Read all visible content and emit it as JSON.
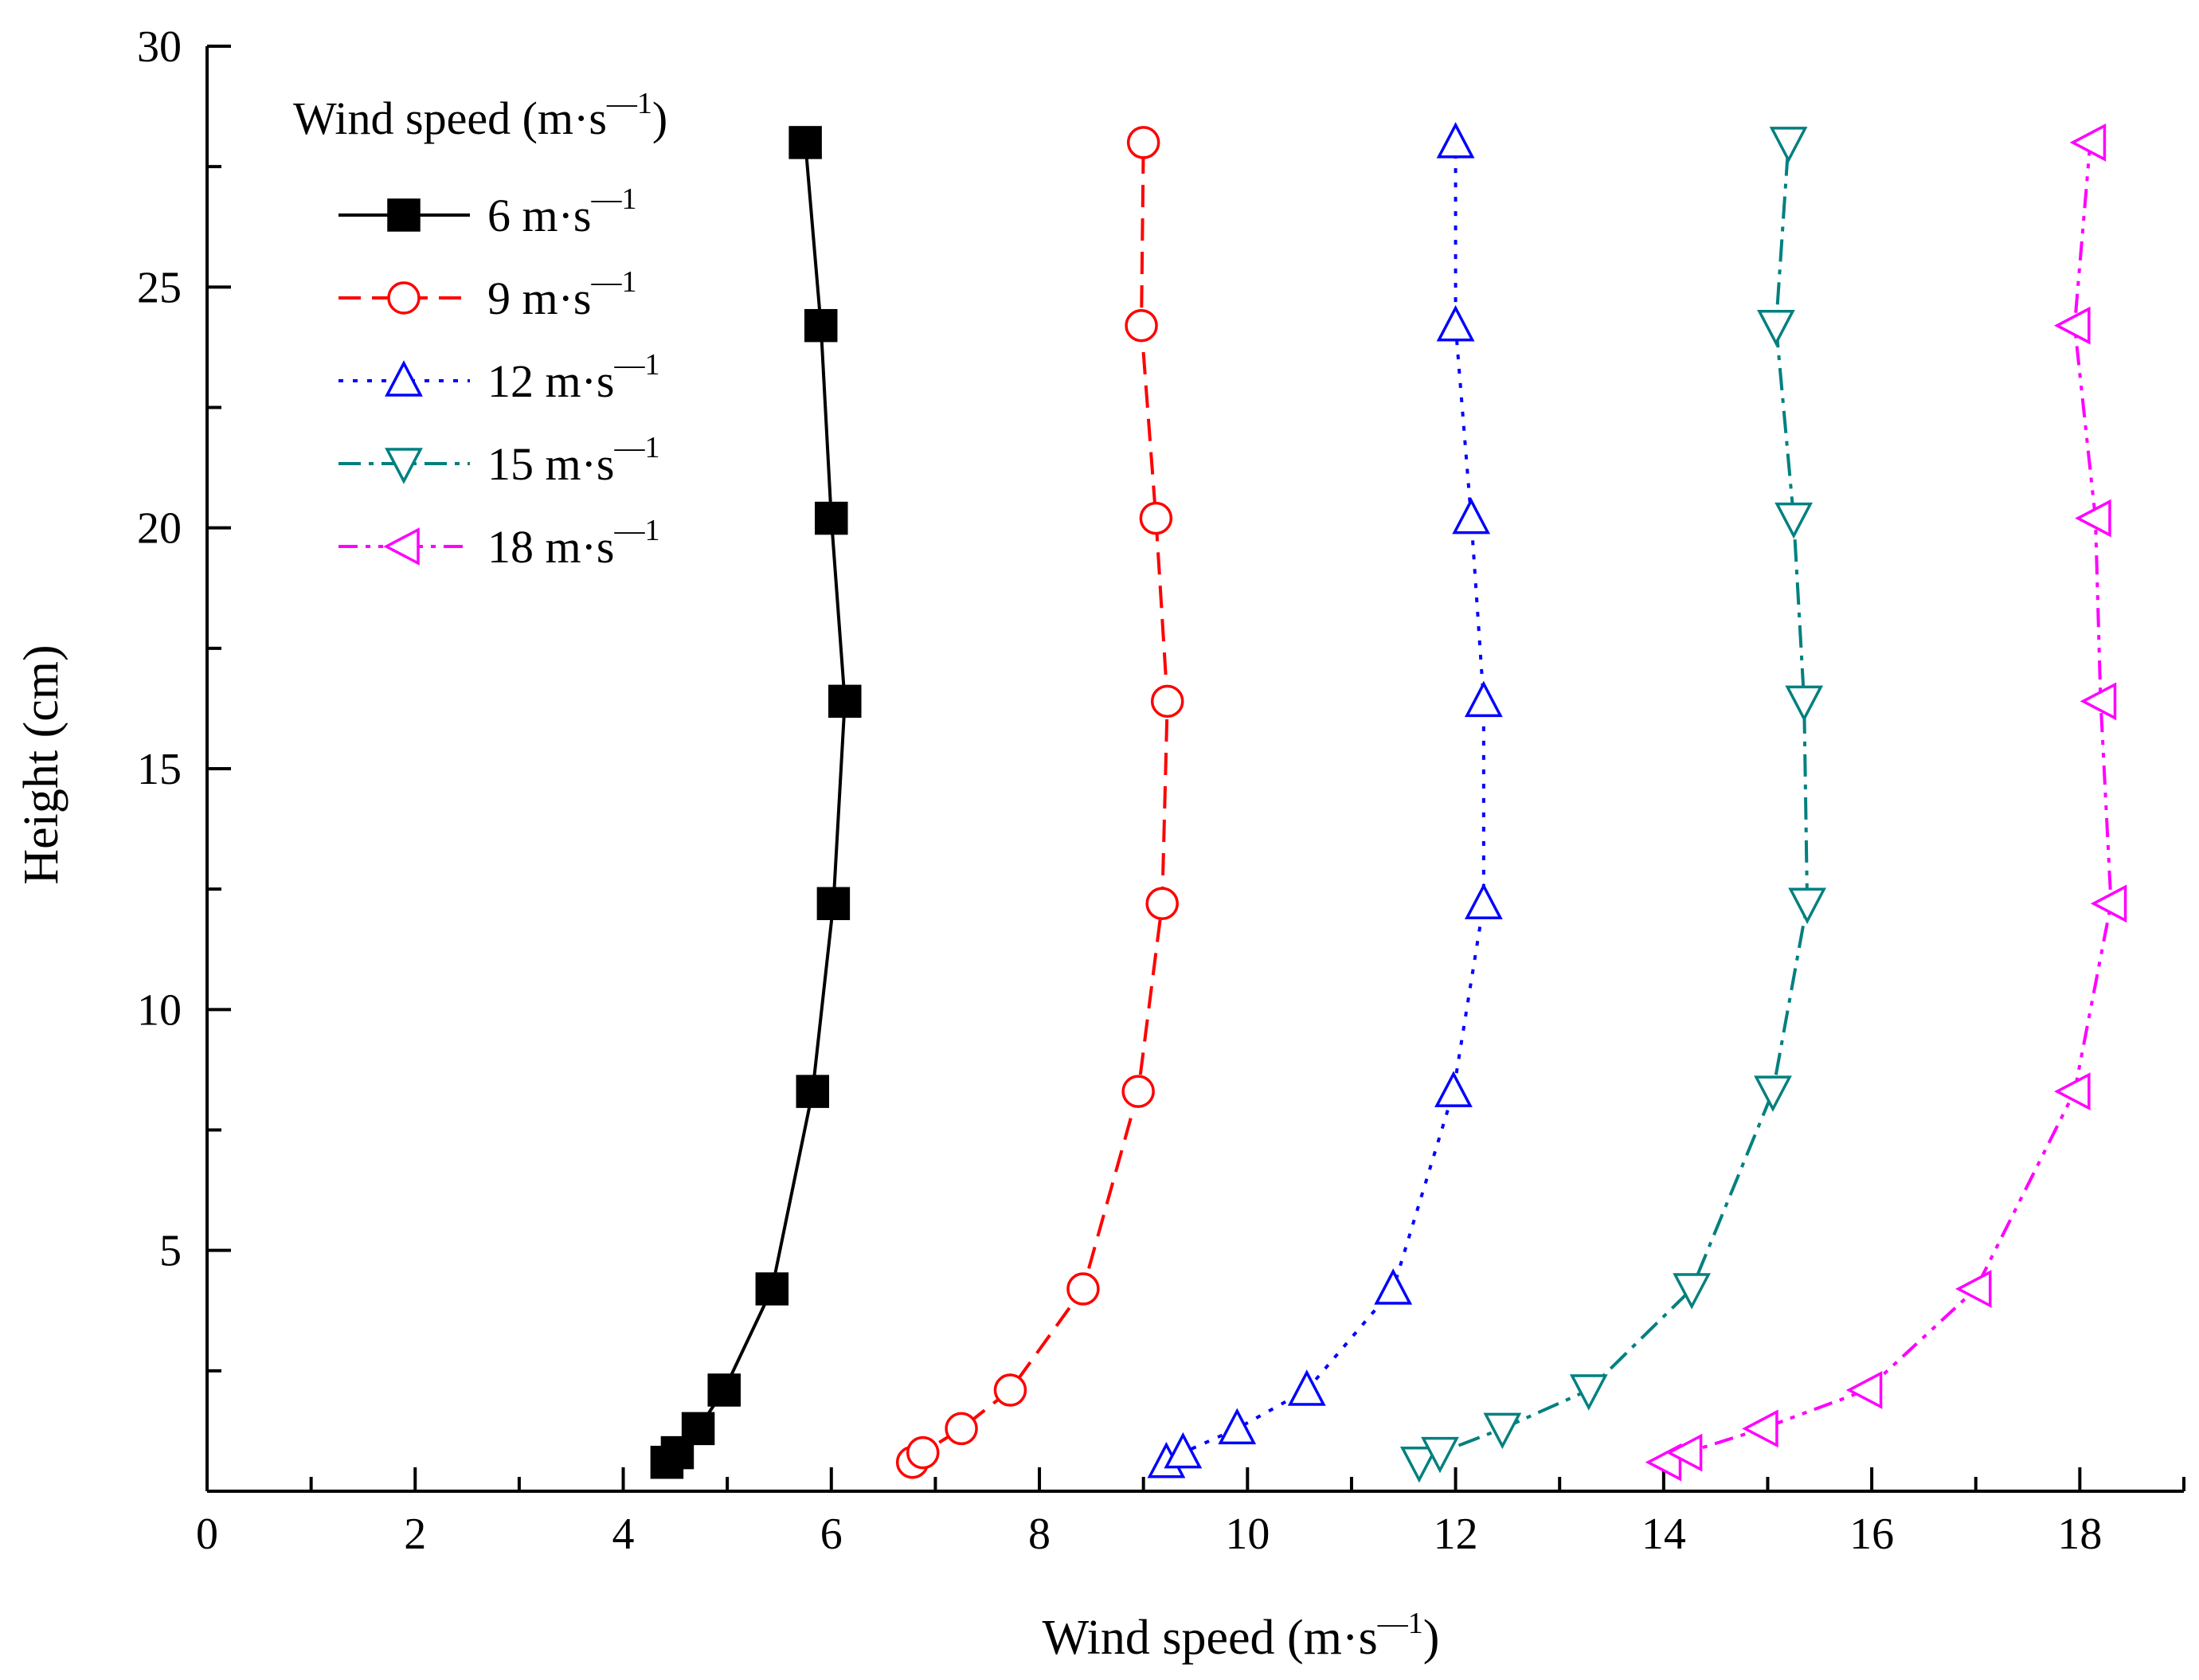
{
  "chart_data": {
    "type": "line",
    "title": "",
    "xlabel": {
      "base": "Wind speed (m·s",
      "sup": "—1",
      "tail": ")"
    },
    "ylabel": "Height (cm)",
    "xlim": [
      0,
      19
    ],
    "ylim": [
      0,
      30
    ],
    "xticks": [
      0,
      2,
      4,
      6,
      8,
      10,
      12,
      14,
      16,
      18
    ],
    "yticks": [
      5,
      10,
      15,
      20,
      25,
      30
    ],
    "grid": false,
    "legend": {
      "position": "top-left",
      "title": {
        "base": "Wind speed (m·s",
        "sup": "—1",
        "tail": ")"
      }
    },
    "series": [
      {
        "name": "6 m·s—1",
        "label_base": "6 m·s",
        "label_sup": "—1",
        "color": "#000000",
        "dash": "solid",
        "marker": "square-filled",
        "points": [
          [
            4.42,
            0.6
          ],
          [
            4.52,
            0.8
          ],
          [
            4.72,
            1.3
          ],
          [
            4.97,
            2.1
          ],
          [
            5.43,
            4.2
          ],
          [
            5.82,
            8.3
          ],
          [
            6.02,
            12.2
          ],
          [
            6.13,
            16.4
          ],
          [
            6.0,
            20.2
          ],
          [
            5.9,
            24.2
          ],
          [
            5.75,
            28.0
          ]
        ]
      },
      {
        "name": "9 m·s—1",
        "label_base": "9 m·s",
        "label_sup": "—1",
        "color": "#ff0000",
        "dash": "dashed",
        "marker": "circle-open",
        "points": [
          [
            6.78,
            0.6
          ],
          [
            6.88,
            0.8
          ],
          [
            7.25,
            1.3
          ],
          [
            7.72,
            2.1
          ],
          [
            8.42,
            4.2
          ],
          [
            8.95,
            8.3
          ],
          [
            9.18,
            12.2
          ],
          [
            9.23,
            16.4
          ],
          [
            9.12,
            20.2
          ],
          [
            8.98,
            24.2
          ],
          [
            9.0,
            28.0
          ]
        ]
      },
      {
        "name": "12 m·s—1",
        "label_base": "12 m·s",
        "label_sup": "—1",
        "color": "#0000ff",
        "dash": "dotted",
        "marker": "triangle-up-open",
        "points": [
          [
            9.22,
            0.6
          ],
          [
            9.38,
            0.8
          ],
          [
            9.9,
            1.3
          ],
          [
            10.57,
            2.1
          ],
          [
            11.4,
            4.2
          ],
          [
            11.98,
            8.3
          ],
          [
            12.27,
            12.2
          ],
          [
            12.27,
            16.4
          ],
          [
            12.15,
            20.2
          ],
          [
            12.0,
            24.2
          ],
          [
            12.0,
            28.0
          ]
        ]
      },
      {
        "name": "15 m·s—1",
        "label_base": "15 m·s",
        "label_sup": "—1",
        "color": "#008080",
        "dash": "dashdot",
        "marker": "triangle-down-open",
        "points": [
          [
            11.65,
            0.6
          ],
          [
            11.85,
            0.8
          ],
          [
            12.45,
            1.3
          ],
          [
            13.28,
            2.1
          ],
          [
            14.27,
            4.2
          ],
          [
            15.05,
            8.3
          ],
          [
            15.38,
            12.2
          ],
          [
            15.35,
            16.4
          ],
          [
            15.25,
            20.2
          ],
          [
            15.08,
            24.2
          ],
          [
            15.2,
            28.0
          ]
        ]
      },
      {
        "name": "18 m·s—1",
        "label_base": "18 m·s",
        "label_sup": "—1",
        "color": "#ff00ff",
        "dash": "dashdotdot",
        "marker": "triangle-left-open",
        "points": [
          [
            14.02,
            0.6
          ],
          [
            14.22,
            0.8
          ],
          [
            14.95,
            1.3
          ],
          [
            15.95,
            2.1
          ],
          [
            17.0,
            4.2
          ],
          [
            17.95,
            8.3
          ],
          [
            18.3,
            12.2
          ],
          [
            18.2,
            16.4
          ],
          [
            18.15,
            20.2
          ],
          [
            17.95,
            24.2
          ],
          [
            18.1,
            28.0
          ]
        ]
      }
    ]
  }
}
